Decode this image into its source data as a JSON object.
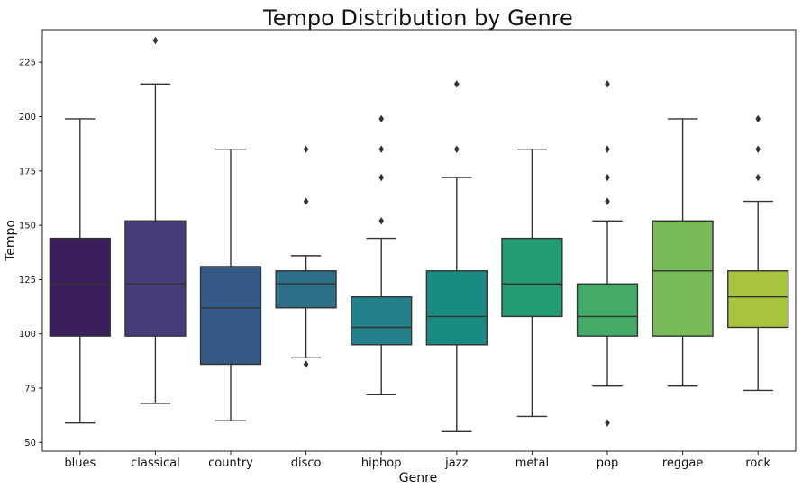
{
  "chart_data": {
    "type": "box",
    "title": "Tempo Distribution by Genre",
    "xlabel": "Genre",
    "ylabel": "Tempo",
    "ylim": [
      46,
      240
    ],
    "yticks": [
      50,
      75,
      100,
      125,
      150,
      175,
      200,
      225
    ],
    "grid": false,
    "categories": [
      "blues",
      "classical",
      "country",
      "disco",
      "hiphop",
      "jazz",
      "metal",
      "pop",
      "reggae",
      "rock"
    ],
    "boxes": [
      {
        "category": "blues",
        "whisker_low": 59,
        "q1": 99,
        "median": 123,
        "q3": 144,
        "whisker_high": 199,
        "outliers": [],
        "color": "#3a1f5c"
      },
      {
        "category": "classical",
        "whisker_low": 68,
        "q1": 99,
        "median": 123,
        "q3": 152,
        "whisker_high": 215,
        "outliers": [
          235
        ],
        "color": "#453c7a"
      },
      {
        "category": "country",
        "whisker_low": 60,
        "q1": 86,
        "median": 112,
        "q3": 131,
        "whisker_high": 185,
        "outliers": [],
        "color": "#355a86"
      },
      {
        "category": "disco",
        "whisker_low": 89,
        "q1": 112,
        "median": 123,
        "q3": 129,
        "whisker_high": 136,
        "outliers": [
          86,
          161,
          185
        ],
        "color": "#2e6f88"
      },
      {
        "category": "hiphop",
        "whisker_low": 72,
        "q1": 95,
        "median": 103,
        "q3": 117,
        "whisker_high": 144,
        "outliers": [
          152,
          172,
          185,
          199
        ],
        "color": "#22818a"
      },
      {
        "category": "jazz",
        "whisker_low": 55,
        "q1": 95,
        "median": 108,
        "q3": 129,
        "whisker_high": 172,
        "outliers": [
          185,
          215
        ],
        "color": "#1a8b82"
      },
      {
        "category": "metal",
        "whisker_low": 62,
        "q1": 108,
        "median": 123,
        "q3": 144,
        "whisker_high": 185,
        "outliers": [],
        "color": "#239b73"
      },
      {
        "category": "pop",
        "whisker_low": 76,
        "q1": 99,
        "median": 108,
        "q3": 123,
        "whisker_high": 152,
        "outliers": [
          59,
          161,
          172,
          185,
          215
        ],
        "color": "#43ab67"
      },
      {
        "category": "reggae",
        "whisker_low": 76,
        "q1": 99,
        "median": 129,
        "q3": 152,
        "whisker_high": 199,
        "outliers": [],
        "color": "#79bb58"
      },
      {
        "category": "rock",
        "whisker_low": 74,
        "q1": 103,
        "median": 117,
        "q3": 129,
        "whisker_high": 161,
        "outliers": [
          172,
          185,
          199
        ],
        "color": "#a8c43e"
      }
    ]
  }
}
